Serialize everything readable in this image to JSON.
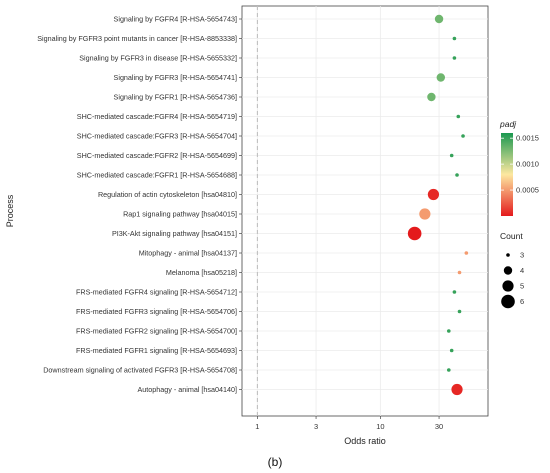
{
  "chart_data": {
    "type": "scatter",
    "xlabel": "Odds ratio",
    "ylabel": "Process",
    "x_scale": "log",
    "xlim": [
      0.75,
      75
    ],
    "x_ticks": [
      1,
      3,
      10,
      30
    ],
    "reference_line_x": 1,
    "grid": true,
    "caption": "(b)",
    "points": [
      {
        "process": "Signaling by FGFR4 [R-HSA-5654743]",
        "odds_ratio": 30,
        "count": 4,
        "padj": 0.0013
      },
      {
        "process": "Signaling by FGFR3 point mutants in cancer [R-HSA-8853338]",
        "odds_ratio": 40,
        "count": 3,
        "padj": 0.0015
      },
      {
        "process": "Signaling by FGFR3 in disease [R-HSA-5655332]",
        "odds_ratio": 40,
        "count": 3,
        "padj": 0.0015
      },
      {
        "process": "Signaling by FGFR3 [R-HSA-5654741]",
        "odds_ratio": 31,
        "count": 4,
        "padj": 0.0013
      },
      {
        "process": "Signaling by FGFR1 [R-HSA-5654736]",
        "odds_ratio": 26,
        "count": 4,
        "padj": 0.0013
      },
      {
        "process": "SHC-mediated cascade:FGFR4 [R-HSA-5654719]",
        "odds_ratio": 43,
        "count": 3,
        "padj": 0.0015
      },
      {
        "process": "SHC-mediated cascade:FGFR3 [R-HSA-5654704]",
        "odds_ratio": 47,
        "count": 3,
        "padj": 0.0015
      },
      {
        "process": "SHC-mediated cascade:FGFR2 [R-HSA-5654699]",
        "odds_ratio": 38,
        "count": 3,
        "padj": 0.0015
      },
      {
        "process": "SHC-mediated cascade:FGFR1 [R-HSA-5654688]",
        "odds_ratio": 42,
        "count": 3,
        "padj": 0.0015
      },
      {
        "process": "Regulation of actin cytoskeleton [hsa04810]",
        "odds_ratio": 27,
        "count": 5,
        "padj": 5e-05
      },
      {
        "process": "Rap1 signaling pathway [hsa04015]",
        "odds_ratio": 23,
        "count": 5,
        "padj": 0.0005
      },
      {
        "process": "PI3K-Akt signaling pathway [hsa04151]",
        "odds_ratio": 19,
        "count": 6,
        "padj": 0.0
      },
      {
        "process": "Mitophagy - animal [hsa04137]",
        "odds_ratio": 50,
        "count": 3,
        "padj": 0.0005
      },
      {
        "process": "Melanoma [hsa05218]",
        "odds_ratio": 44,
        "count": 3,
        "padj": 0.0005
      },
      {
        "process": "FRS-mediated FGFR4 signaling [R-HSA-5654712]",
        "odds_ratio": 40,
        "count": 3,
        "padj": 0.0015
      },
      {
        "process": "FRS-mediated FGFR3 signaling [R-HSA-5654706]",
        "odds_ratio": 44,
        "count": 3,
        "padj": 0.0015
      },
      {
        "process": "FRS-mediated FGFR2 signaling [R-HSA-5654700]",
        "odds_ratio": 36,
        "count": 3,
        "padj": 0.0015
      },
      {
        "process": "FRS-mediated FGFR1 signaling [R-HSA-5654693]",
        "odds_ratio": 38,
        "count": 3,
        "padj": 0.0015
      },
      {
        "process": "Downstream signaling of activated FGFR3 [R-HSA-5654708]",
        "odds_ratio": 36,
        "count": 3,
        "padj": 0.0015
      },
      {
        "process": "Autophagy - animal [hsa04140]",
        "odds_ratio": 42,
        "count": 5,
        "padj": 5e-05
      }
    ],
    "legend_color": {
      "title": "padj",
      "range": [
        0,
        0.0016
      ],
      "ticks": [
        0.0005,
        0.001,
        0.0015
      ],
      "tick_labels": [
        "0.0005",
        "0.0010",
        "0.0015"
      ],
      "colors": [
        "#e41a1c",
        "#fde8a0",
        "#1a9850"
      ],
      "placement": "right"
    },
    "legend_size": {
      "title": "Count",
      "values": [
        3,
        4,
        5,
        6
      ],
      "placement": "right"
    }
  }
}
